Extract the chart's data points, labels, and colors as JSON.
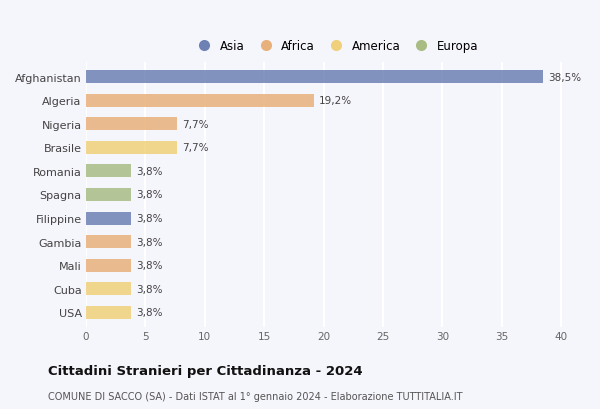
{
  "categories": [
    "Afghanistan",
    "Algeria",
    "Nigeria",
    "Brasile",
    "Romania",
    "Spagna",
    "Filippine",
    "Gambia",
    "Mali",
    "Cuba",
    "USA"
  ],
  "values": [
    38.5,
    19.2,
    7.7,
    7.7,
    3.8,
    3.8,
    3.8,
    3.8,
    3.8,
    3.8,
    3.8
  ],
  "labels": [
    "38,5%",
    "19,2%",
    "7,7%",
    "7,7%",
    "3,8%",
    "3,8%",
    "3,8%",
    "3,8%",
    "3,8%",
    "3,8%",
    "3,8%"
  ],
  "colors": [
    "#6e81b5",
    "#e8b07a",
    "#e8b07a",
    "#f0d07a",
    "#a8bc84",
    "#a8bc84",
    "#6e81b5",
    "#e8b07a",
    "#e8b07a",
    "#f0d07a",
    "#f0d07a"
  ],
  "legend": [
    {
      "label": "Asia",
      "color": "#6e81b5"
    },
    {
      "label": "Africa",
      "color": "#e8b07a"
    },
    {
      "label": "America",
      "color": "#f0d07a"
    },
    {
      "label": "Europa",
      "color": "#a8bc84"
    }
  ],
  "xlim": [
    0,
    42
  ],
  "xticks": [
    0,
    5,
    10,
    15,
    20,
    25,
    30,
    35,
    40
  ],
  "title": "Cittadini Stranieri per Cittadinanza - 2024",
  "subtitle": "COMUNE DI SACCO (SA) - Dati ISTAT al 1° gennaio 2024 - Elaborazione TUTTITALIA.IT",
  "bg_color": "#f5f5fc",
  "plot_bg_color": "#f5f5fc",
  "grid_color": "#ffffff",
  "bar_height": 0.55,
  "label_fontsize": 7.5,
  "ytick_fontsize": 8,
  "xtick_fontsize": 7.5,
  "legend_fontsize": 8.5,
  "title_fontsize": 9.5,
  "subtitle_fontsize": 7
}
